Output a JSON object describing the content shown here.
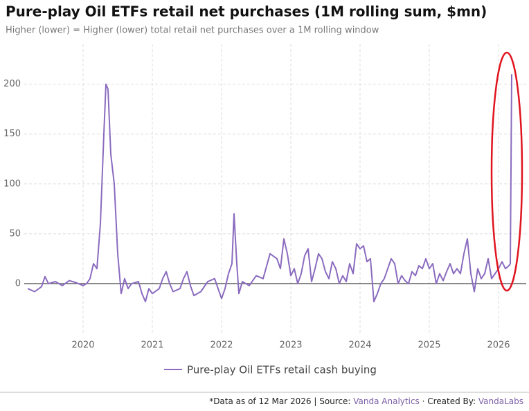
{
  "chart_data": {
    "type": "line",
    "title": "Pure-play Oil ETFs retail net purchases (1M rolling sum, $mn)",
    "subtitle": "Higher (lower) = Higher (lower) total retail net purchases over a 1M rolling window",
    "x": [
      2019.2,
      2019.3,
      2019.4,
      2019.45,
      2019.5,
      2019.6,
      2019.7,
      2019.8,
      2019.9,
      2020.0,
      2020.05,
      2020.1,
      2020.15,
      2020.2,
      2020.25,
      2020.3,
      2020.33,
      2020.36,
      2020.4,
      2020.45,
      2020.5,
      2020.55,
      2020.6,
      2020.65,
      2020.7,
      2020.8,
      2020.85,
      2020.9,
      2020.95,
      2021.0,
      2021.1,
      2021.15,
      2021.2,
      2021.25,
      2021.3,
      2021.4,
      2021.45,
      2021.5,
      2021.55,
      2021.6,
      2021.7,
      2021.8,
      2021.9,
      2022.0,
      2022.05,
      2022.1,
      2022.15,
      2022.18,
      2022.22,
      2022.25,
      2022.3,
      2022.4,
      2022.5,
      2022.6,
      2022.7,
      2022.8,
      2022.85,
      2022.9,
      2022.95,
      2023.0,
      2023.05,
      2023.1,
      2023.15,
      2023.2,
      2023.25,
      2023.3,
      2023.35,
      2023.4,
      2023.45,
      2023.5,
      2023.55,
      2023.6,
      2023.65,
      2023.7,
      2023.75,
      2023.8,
      2023.85,
      2023.9,
      2023.95,
      2024.0,
      2024.05,
      2024.1,
      2024.15,
      2024.2,
      2024.25,
      2024.3,
      2024.35,
      2024.4,
      2024.45,
      2024.5,
      2024.55,
      2024.6,
      2024.65,
      2024.7,
      2024.75,
      2024.8,
      2024.85,
      2024.9,
      2024.95,
      2025.0,
      2025.05,
      2025.1,
      2025.15,
      2025.2,
      2025.25,
      2025.3,
      2025.35,
      2025.4,
      2025.45,
      2025.5,
      2025.55,
      2025.6,
      2025.65,
      2025.7,
      2025.75,
      2025.8,
      2025.85,
      2025.9,
      2025.95,
      2026.0,
      2026.05,
      2026.1,
      2026.15,
      2026.17,
      2026.19
    ],
    "series": [
      {
        "name": "Pure-play Oil ETFs retail cash buying",
        "color": "#8a6bbf",
        "values": [
          -5,
          -8,
          -3,
          7,
          0,
          2,
          -2,
          3,
          1,
          -2,
          0,
          5,
          20,
          15,
          60,
          150,
          200,
          195,
          130,
          100,
          30,
          -10,
          5,
          -5,
          0,
          2,
          -10,
          -18,
          -5,
          -10,
          -5,
          5,
          12,
          0,
          -8,
          -5,
          5,
          12,
          -2,
          -12,
          -8,
          2,
          5,
          -15,
          -5,
          10,
          20,
          70,
          20,
          -10,
          2,
          -2,
          8,
          5,
          30,
          25,
          15,
          45,
          30,
          8,
          15,
          0,
          10,
          28,
          35,
          2,
          15,
          30,
          25,
          12,
          5,
          22,
          15,
          0,
          8,
          2,
          20,
          10,
          40,
          35,
          38,
          22,
          25,
          -18,
          -10,
          0,
          5,
          15,
          25,
          20,
          0,
          8,
          3,
          0,
          12,
          8,
          18,
          15,
          25,
          15,
          20,
          0,
          10,
          3,
          12,
          20,
          10,
          15,
          10,
          30,
          45,
          10,
          -8,
          15,
          5,
          10,
          25,
          5,
          10,
          15,
          22,
          15,
          18,
          20,
          210
        ]
      }
    ],
    "xlim": [
      2019.15,
      2026.4
    ],
    "xticks": [
      2020,
      2021,
      2022,
      2023,
      2024,
      2025,
      2026
    ],
    "ylim": [
      -50,
      240
    ],
    "yticks": [
      0,
      50,
      100,
      150,
      200
    ],
    "grid": true,
    "footer": [
      "*Data as of 12 Mar 2026 | Source: ",
      "Vanda Analytics",
      " · Created By: ",
      "VandaLabs"
    ]
  }
}
